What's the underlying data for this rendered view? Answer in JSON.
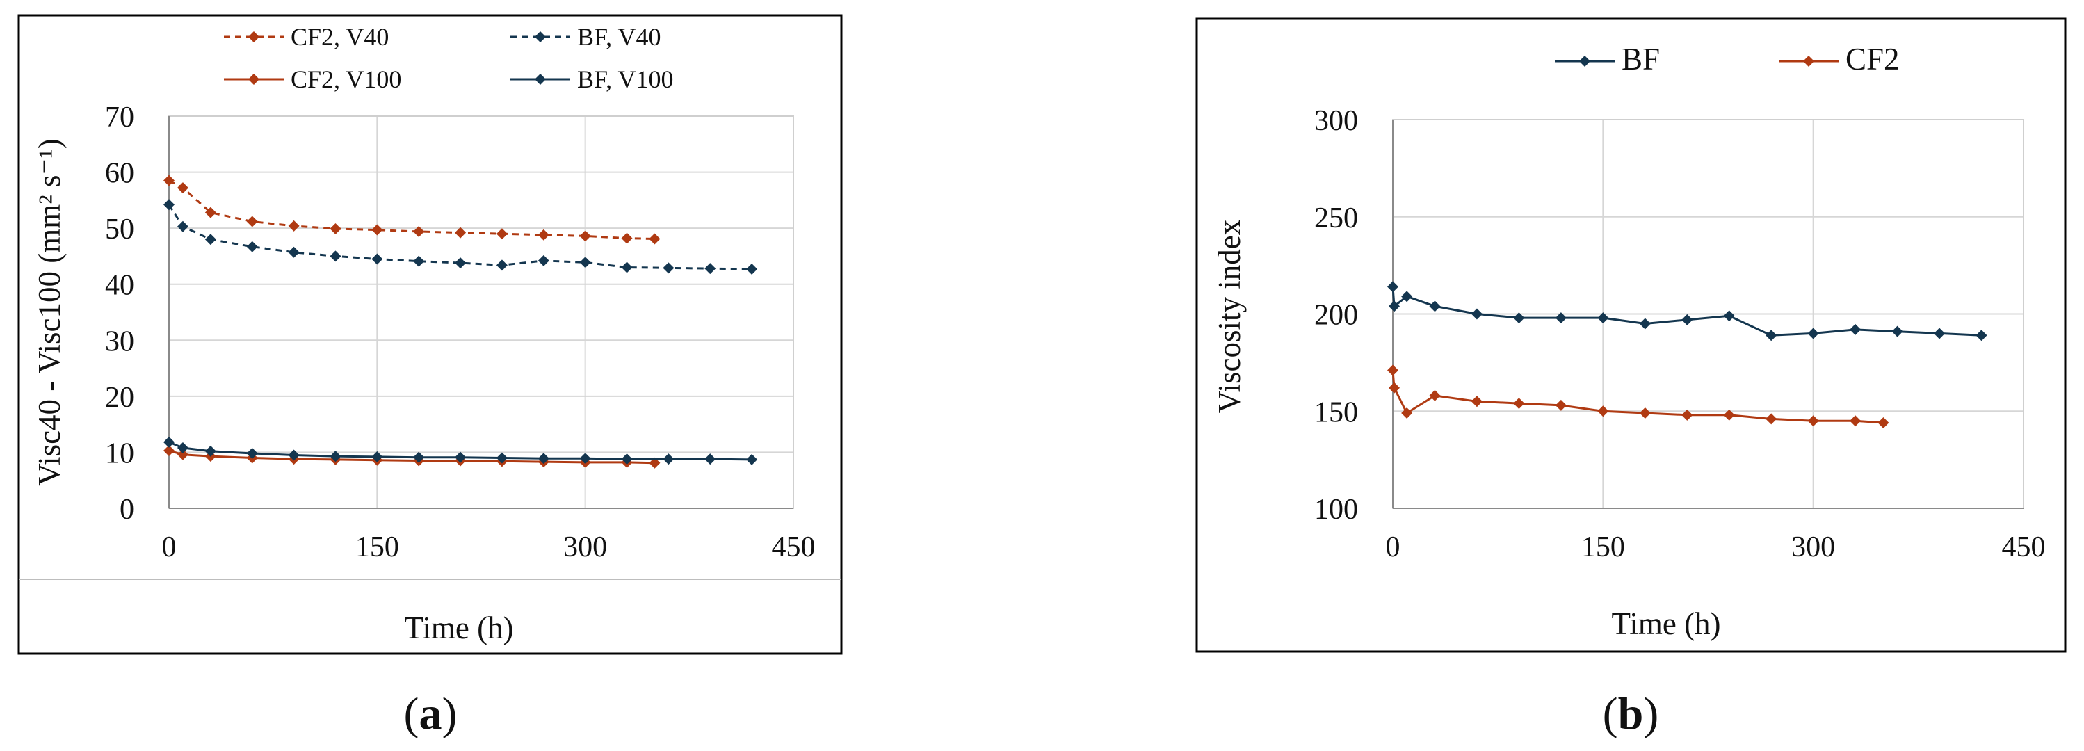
{
  "chart_data": [
    {
      "type": "line",
      "panel_label": {
        "open": "(",
        "letter": "a",
        "close": ")"
      },
      "xlabel": "Time (h)",
      "ylabel": "Visc40 - Visc100 (mm² s⁻¹)",
      "xlim": [
        0,
        450
      ],
      "ylim": [
        0,
        70
      ],
      "xticks": [
        0,
        150,
        300,
        450
      ],
      "yticks": [
        0,
        10,
        20,
        30,
        40,
        50,
        60,
        70
      ],
      "grid": true,
      "legend_position": "top",
      "series": [
        {
          "name": "CF2, V40",
          "color": "#b03a12",
          "dash": "dashed",
          "x": [
            0,
            10,
            30,
            60,
            90,
            120,
            150,
            180,
            210,
            240,
            270,
            300,
            330,
            350
          ],
          "y": [
            58.5,
            57.2,
            52.8,
            51.2,
            50.4,
            49.9,
            49.7,
            49.4,
            49.2,
            49.0,
            48.8,
            48.6,
            48.2,
            48.1
          ]
        },
        {
          "name": "BF, V40",
          "color": "#14364f",
          "dash": "dashed",
          "x": [
            0,
            10,
            30,
            60,
            90,
            120,
            150,
            180,
            210,
            240,
            270,
            300,
            330,
            360,
            390,
            420
          ],
          "y": [
            54.2,
            50.3,
            48.0,
            46.7,
            45.7,
            45.0,
            44.5,
            44.1,
            43.8,
            43.4,
            44.2,
            43.9,
            43.0,
            42.9,
            42.8,
            42.7
          ]
        },
        {
          "name": "CF2, V100",
          "color": "#b03a12",
          "dash": "solid",
          "x": [
            0,
            10,
            30,
            60,
            90,
            120,
            150,
            180,
            210,
            240,
            270,
            300,
            330,
            350
          ],
          "y": [
            10.3,
            9.6,
            9.3,
            9.0,
            8.8,
            8.7,
            8.6,
            8.5,
            8.5,
            8.4,
            8.3,
            8.2,
            8.2,
            8.1
          ]
        },
        {
          "name": "BF, V100",
          "color": "#14364f",
          "dash": "solid",
          "x": [
            0,
            10,
            30,
            60,
            90,
            120,
            150,
            180,
            210,
            240,
            270,
            300,
            330,
            360,
            390,
            420
          ],
          "y": [
            11.8,
            10.8,
            10.2,
            9.8,
            9.5,
            9.3,
            9.2,
            9.1,
            9.1,
            9.0,
            8.9,
            8.9,
            8.8,
            8.8,
            8.8,
            8.7
          ]
        }
      ]
    },
    {
      "type": "line",
      "panel_label": {
        "open": "(",
        "letter": "b",
        "close": ")"
      },
      "xlabel": "Time (h)",
      "ylabel": "Viscosity index",
      "xlim": [
        0,
        450
      ],
      "ylim": [
        100,
        300
      ],
      "xticks": [
        0,
        150,
        300,
        450
      ],
      "yticks": [
        100,
        150,
        200,
        250,
        300
      ],
      "grid": true,
      "legend_position": "top",
      "series": [
        {
          "name": "BF",
          "color": "#14364f",
          "dash": "solid",
          "x": [
            0,
            1,
            10,
            30,
            60,
            90,
            120,
            150,
            180,
            210,
            240,
            270,
            300,
            330,
            360,
            390,
            420
          ],
          "y": [
            214,
            204,
            209,
            204,
            200,
            198,
            198,
            198,
            195,
            197,
            199,
            189,
            190,
            192,
            191,
            190,
            189
          ]
        },
        {
          "name": "CF2",
          "color": "#b03a12",
          "dash": "solid",
          "x": [
            0,
            1,
            10,
            30,
            60,
            90,
            120,
            150,
            180,
            210,
            240,
            270,
            300,
            330,
            350
          ],
          "y": [
            171,
            162,
            149,
            158,
            155,
            154,
            153,
            150,
            149,
            148,
            148,
            146,
            145,
            145,
            144
          ]
        }
      ]
    }
  ]
}
